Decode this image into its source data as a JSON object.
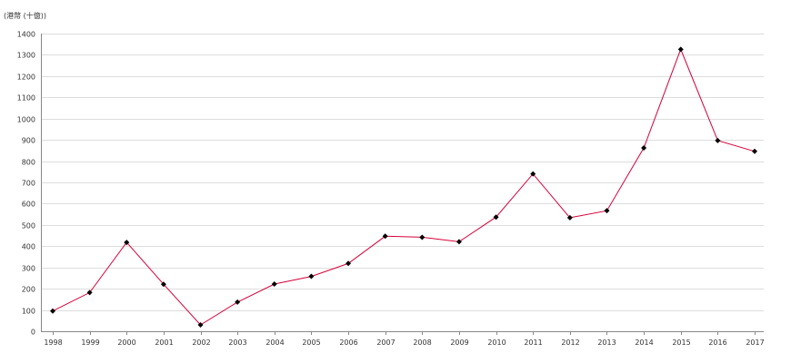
{
  "chart_data": {
    "type": "line",
    "title": "",
    "unit_label": "(港幣 (十億))",
    "xlabel": "",
    "ylabel": "",
    "x": [
      "1998",
      "1999",
      "2000",
      "2001",
      "2002",
      "2003",
      "2004",
      "2005",
      "2006",
      "2007",
      "2008",
      "2009",
      "2010",
      "2011",
      "2012",
      "2013",
      "2014",
      "2015",
      "2016",
      "2017"
    ],
    "series": [
      {
        "values": [
          95,
          182,
          418,
          221,
          30,
          137,
          222,
          258,
          319,
          447,
          442,
          421,
          537,
          740,
          534,
          567,
          862,
          1326,
          897,
          846
        ]
      }
    ],
    "ylim": [
      0,
      1400
    ],
    "yticks": [
      0,
      100,
      200,
      300,
      400,
      500,
      600,
      700,
      800,
      900,
      1000,
      1100,
      1200,
      1300,
      1400
    ],
    "grid": true,
    "line_color": "#d6003a",
    "marker_color": "#000000",
    "grid_color": "#dddddd"
  }
}
